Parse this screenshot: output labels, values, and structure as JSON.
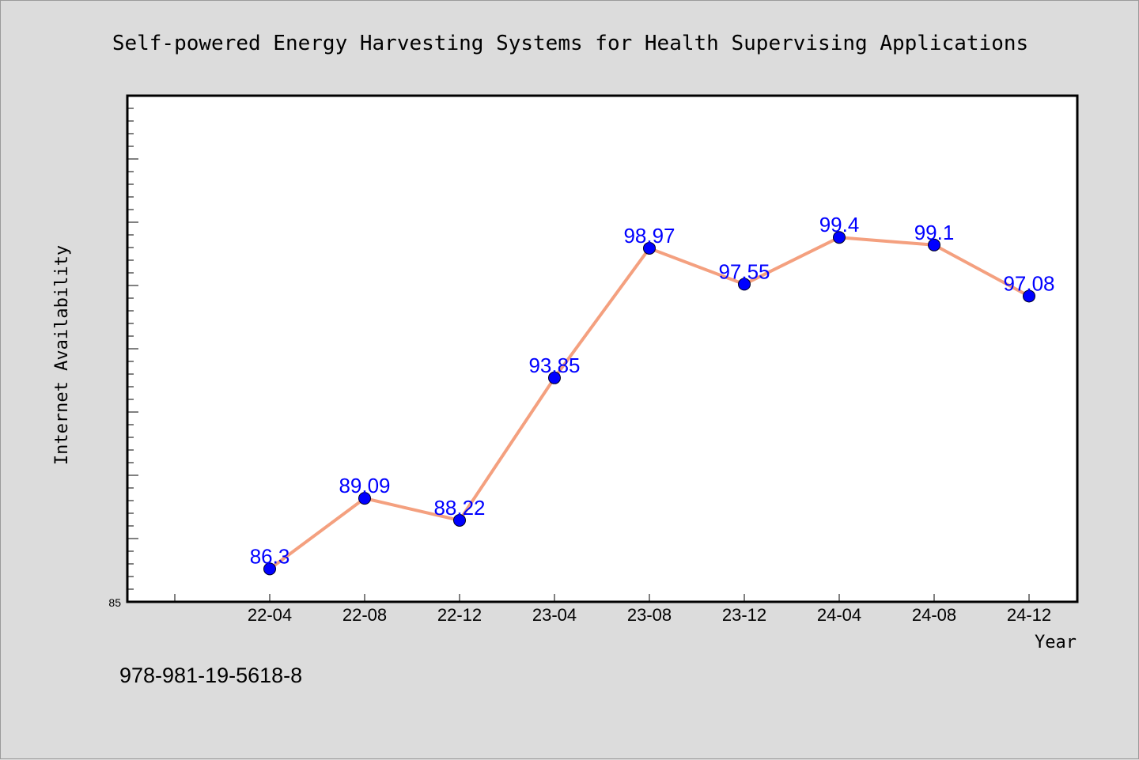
{
  "chart_data": {
    "type": "line",
    "title": "Self-powered Energy Harvesting Systems for Health Supervising Applications",
    "xlabel": "Year",
    "ylabel": "Internet Availability",
    "categories": [
      "22-04",
      "22-08",
      "22-12",
      "23-04",
      "23-08",
      "23-12",
      "24-04",
      "24-08",
      "24-12"
    ],
    "series": [
      {
        "values": [
          86.3,
          89.09,
          88.22,
          93.85,
          98.97,
          97.55,
          99.4,
          99.1,
          97.08
        ]
      }
    ],
    "value_labels": [
      "86.3",
      "89.09",
      "88.22",
      "93.85",
      "98.97",
      "97.55",
      "99.4",
      "99.1",
      "97.08"
    ],
    "ylim": [
      85,
      105
    ],
    "y_tick_labels": [
      "85"
    ],
    "grid": false,
    "line_color": "#f4a07f",
    "marker_color": "#0000ff",
    "label_color": "#0000ff",
    "footer": "978-981-19-5618-8"
  }
}
